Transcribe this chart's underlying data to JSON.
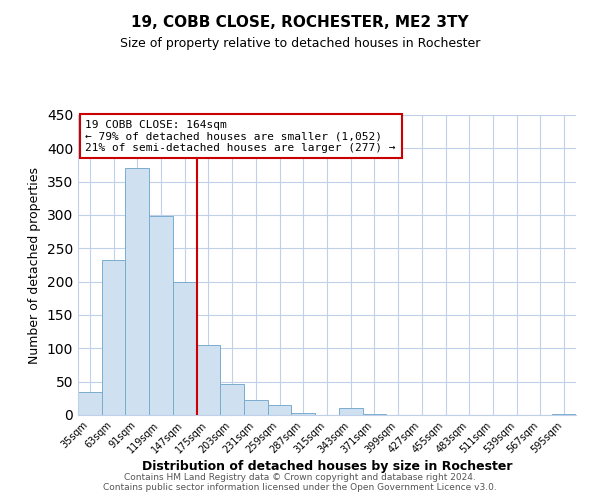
{
  "title": "19, COBB CLOSE, ROCHESTER, ME2 3TY",
  "subtitle": "Size of property relative to detached houses in Rochester",
  "xlabel": "Distribution of detached houses by size in Rochester",
  "ylabel": "Number of detached properties",
  "bar_color": "#cfe0f0",
  "bar_edge_color": "#7aacce",
  "categories": [
    "35sqm",
    "63sqm",
    "91sqm",
    "119sqm",
    "147sqm",
    "175sqm",
    "203sqm",
    "231sqm",
    "259sqm",
    "287sqm",
    "315sqm",
    "343sqm",
    "371sqm",
    "399sqm",
    "427sqm",
    "455sqm",
    "483sqm",
    "511sqm",
    "539sqm",
    "567sqm",
    "595sqm"
  ],
  "values": [
    35,
    233,
    370,
    298,
    199,
    105,
    46,
    23,
    15,
    3,
    0,
    10,
    1,
    0,
    0,
    0,
    0,
    0,
    0,
    0,
    2
  ],
  "vline_index": 4.5,
  "vline_color": "#cc0000",
  "ann_line1": "19 COBB CLOSE: 164sqm",
  "ann_line2": "← 79% of detached houses are smaller (1,052)",
  "ann_line3": "21% of semi-detached houses are larger (277) →",
  "ylim": [
    0,
    450
  ],
  "yticks": [
    0,
    50,
    100,
    150,
    200,
    250,
    300,
    350,
    400,
    450
  ],
  "footer1": "Contains HM Land Registry data © Crown copyright and database right 2024.",
  "footer2": "Contains public sector information licensed under the Open Government Licence v3.0.",
  "background_color": "#ffffff",
  "grid_color": "#c0d0e8"
}
